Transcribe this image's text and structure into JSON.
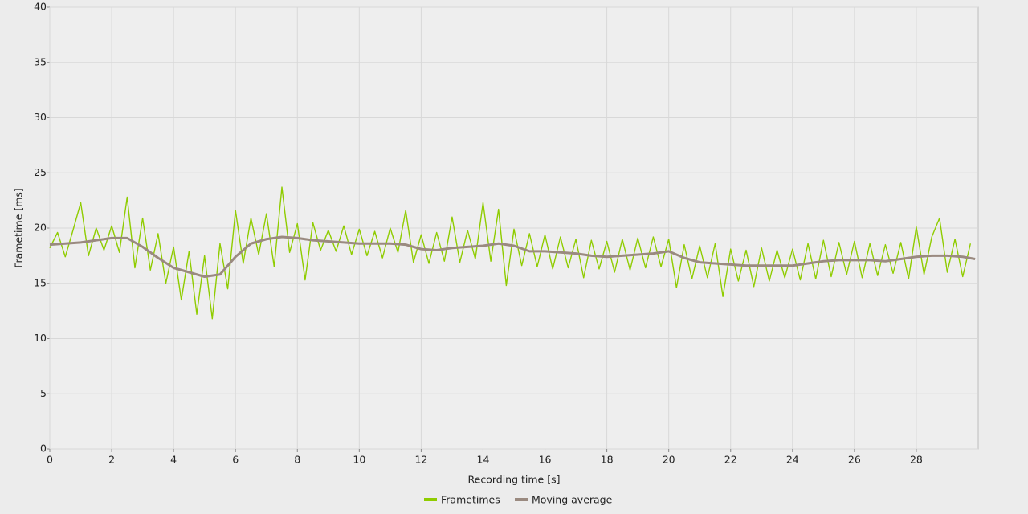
{
  "chart_data": {
    "type": "line",
    "x_label": "Recording time [s]",
    "y_label": "Frametime [ms]",
    "xlim": [
      0,
      30
    ],
    "ylim": [
      0,
      40
    ],
    "xticks": [
      0,
      2,
      4,
      6,
      8,
      10,
      12,
      14,
      16,
      18,
      20,
      22,
      24,
      26,
      28
    ],
    "yticks": [
      0,
      5,
      10,
      15,
      20,
      25,
      30,
      35,
      40
    ],
    "grid": true,
    "legend": "bottom",
    "series": [
      {
        "name": "Frametimes",
        "color": "#8fcc00",
        "x": [
          0,
          0.25,
          0.5,
          0.75,
          1,
          1.25,
          1.5,
          1.75,
          2,
          2.25,
          2.5,
          2.75,
          3,
          3.25,
          3.5,
          3.75,
          4,
          4.25,
          4.5,
          4.75,
          5,
          5.25,
          5.5,
          5.75,
          6,
          6.25,
          6.5,
          6.75,
          7,
          7.25,
          7.5,
          7.75,
          8,
          8.25,
          8.5,
          8.75,
          9,
          9.25,
          9.5,
          9.75,
          10,
          10.25,
          10.5,
          10.75,
          11,
          11.25,
          11.5,
          11.75,
          12,
          12.25,
          12.5,
          12.75,
          13,
          13.25,
          13.5,
          13.75,
          14,
          14.25,
          14.5,
          14.75,
          15,
          15.25,
          15.5,
          15.75,
          16,
          16.25,
          16.5,
          16.75,
          17,
          17.25,
          17.5,
          17.75,
          18,
          18.25,
          18.5,
          18.75,
          19,
          19.25,
          19.5,
          19.75,
          20,
          20.25,
          20.5,
          20.75,
          21,
          21.25,
          21.5,
          21.75,
          22,
          22.25,
          22.5,
          22.75,
          23,
          23.25,
          23.5,
          23.75,
          24,
          24.25,
          24.5,
          24.75,
          25,
          25.25,
          25.5,
          25.75,
          26,
          26.25,
          26.5,
          26.75,
          27,
          27.25,
          27.5,
          27.75,
          28,
          28.25,
          28.5,
          28.75,
          29,
          29.25,
          29.5,
          29.75
        ],
        "values": [
          18.2,
          19.6,
          17.4,
          19.8,
          22.3,
          17.5,
          20.0,
          18.0,
          20.2,
          17.8,
          22.8,
          16.4,
          20.9,
          16.2,
          19.5,
          15.0,
          18.3,
          13.5,
          17.9,
          12.2,
          17.5,
          11.8,
          18.6,
          14.5,
          21.6,
          16.8,
          20.9,
          17.6,
          21.3,
          16.5,
          23.7,
          17.8,
          20.4,
          15.3,
          20.5,
          18.0,
          19.8,
          17.9,
          20.2,
          17.6,
          19.9,
          17.5,
          19.7,
          17.3,
          20.0,
          17.8,
          21.6,
          16.9,
          19.4,
          16.8,
          19.6,
          17.0,
          21.0,
          16.9,
          19.8,
          17.2,
          22.3,
          17.0,
          21.7,
          14.8,
          19.9,
          16.6,
          19.5,
          16.5,
          19.4,
          16.3,
          19.2,
          16.4,
          19.0,
          15.5,
          18.9,
          16.3,
          18.8,
          16.0,
          19.0,
          16.2,
          19.1,
          16.4,
          19.2,
          16.5,
          19.0,
          14.6,
          18.5,
          15.4,
          18.4,
          15.5,
          18.6,
          13.8,
          18.1,
          15.2,
          18.0,
          14.7,
          18.2,
          15.2,
          18.0,
          15.5,
          18.1,
          15.3,
          18.6,
          15.4,
          18.9,
          15.6,
          18.7,
          15.8,
          18.8,
          15.5,
          18.6,
          15.7,
          18.5,
          15.9,
          18.7,
          15.4,
          20.1,
          15.8,
          19.2,
          20.9,
          16.0,
          19.0,
          15.6,
          18.6
        ]
      },
      {
        "name": "Moving average",
        "color": "#9a8a80",
        "x": [
          0,
          0.5,
          1,
          1.5,
          2,
          2.5,
          3,
          3.5,
          4,
          4.5,
          5,
          5.5,
          6,
          6.5,
          7,
          7.5,
          8,
          8.5,
          9,
          9.5,
          10,
          10.5,
          11,
          11.5,
          12,
          12.5,
          13,
          13.5,
          14,
          14.5,
          15,
          15.5,
          16,
          16.5,
          17,
          17.5,
          18,
          18.5,
          19,
          19.5,
          20,
          20.5,
          21,
          21.5,
          22,
          22.5,
          23,
          23.5,
          24,
          24.5,
          25,
          25.5,
          26,
          26.5,
          27,
          27.5,
          28,
          28.5,
          29,
          29.5,
          29.9
        ],
        "values": [
          18.5,
          18.6,
          18.7,
          18.9,
          19.1,
          19.1,
          18.3,
          17.3,
          16.4,
          16.0,
          15.6,
          15.8,
          17.4,
          18.6,
          19.0,
          19.2,
          19.1,
          18.9,
          18.8,
          18.7,
          18.6,
          18.6,
          18.6,
          18.5,
          18.1,
          18.0,
          18.2,
          18.3,
          18.4,
          18.6,
          18.4,
          17.9,
          17.9,
          17.8,
          17.7,
          17.5,
          17.4,
          17.5,
          17.6,
          17.7,
          17.9,
          17.3,
          16.9,
          16.8,
          16.7,
          16.6,
          16.6,
          16.6,
          16.6,
          16.8,
          17.0,
          17.1,
          17.1,
          17.1,
          17.0,
          17.2,
          17.4,
          17.5,
          17.5,
          17.4,
          17.2
        ]
      }
    ]
  }
}
